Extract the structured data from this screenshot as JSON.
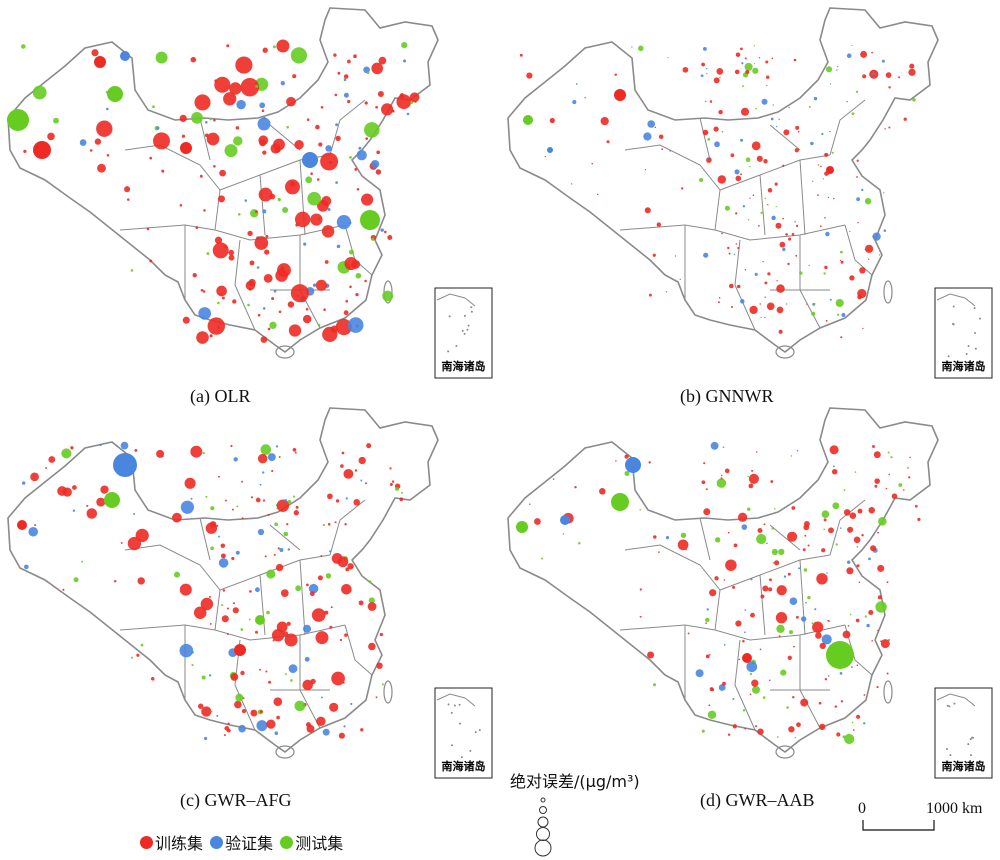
{
  "colors": {
    "train": "#ee2a24",
    "validation": "#4a86e0",
    "test": "#66cc22",
    "boundary": "#8a8a8a"
  },
  "panels": [
    {
      "id": "a",
      "title": "(a) OLR",
      "inset_label": "南海诸岛"
    },
    {
      "id": "b",
      "title": "(b) GNNWR",
      "inset_label": "南海诸岛"
    },
    {
      "id": "c",
      "title": "(c) GWR–AFG",
      "inset_label": "南海诸岛"
    },
    {
      "id": "d",
      "title": "(d) GWR–AAB",
      "inset_label": "南海诸岛"
    }
  ],
  "legend": {
    "items": [
      {
        "label": "训练集",
        "color_key": "train"
      },
      {
        "label": "验证集",
        "color_key": "validation"
      },
      {
        "label": "测试集",
        "color_key": "test"
      }
    ]
  },
  "size_legend": {
    "title": "绝对误差/(μg/m³)"
  },
  "scalebar": {
    "start_label": "0",
    "end_label": "1000 km"
  }
}
